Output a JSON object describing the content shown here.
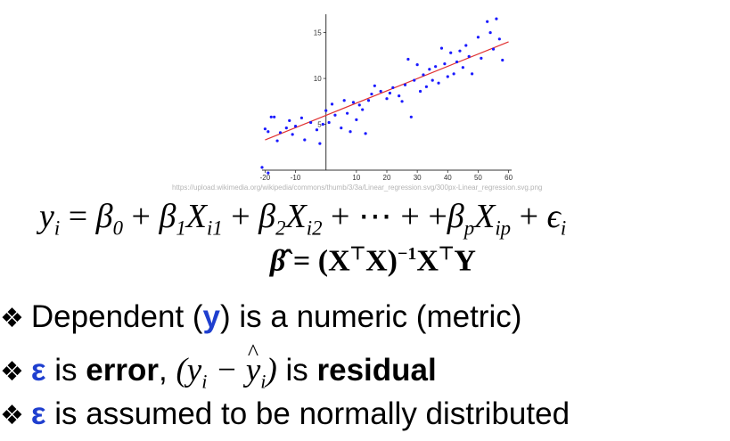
{
  "chart_data": {
    "type": "scatter",
    "title": "",
    "xlabel": "",
    "ylabel": "",
    "xlim": [
      -21,
      61
    ],
    "ylim": [
      0,
      17
    ],
    "x_ticks": [
      "-20",
      "-10",
      "10",
      "20",
      "30",
      "40",
      "50",
      "60"
    ],
    "y_ticks": [
      "5",
      "10",
      "15"
    ],
    "grid": false,
    "points": [
      [
        -20,
        4.5
      ],
      [
        -19,
        4.2
      ],
      [
        -18,
        5.8
      ],
      [
        -17,
        5.8
      ],
      [
        -16,
        3.2
      ],
      [
        -15,
        4.1
      ],
      [
        -13,
        4.6
      ],
      [
        -12,
        5.4
      ],
      [
        -11,
        3.9
      ],
      [
        -10,
        4.8
      ],
      [
        -8,
        5.7
      ],
      [
        -7,
        3.3
      ],
      [
        -5,
        5.2
      ],
      [
        -3,
        4.4
      ],
      [
        -2,
        2.9
      ],
      [
        -1,
        5.0
      ],
      [
        0,
        6.5
      ],
      [
        1,
        5.2
      ],
      [
        2,
        7.2
      ],
      [
        3,
        6.0
      ],
      [
        5,
        4.6
      ],
      [
        6,
        7.6
      ],
      [
        7,
        6.2
      ],
      [
        8,
        4.2
      ],
      [
        9,
        7.4
      ],
      [
        10,
        5.5
      ],
      [
        11,
        7.1
      ],
      [
        12,
        6.6
      ],
      [
        13,
        4.0
      ],
      [
        14,
        7.6
      ],
      [
        15,
        8.3
      ],
      [
        16,
        9.2
      ],
      [
        18,
        8.6
      ],
      [
        20,
        7.8
      ],
      [
        21,
        8.4
      ],
      [
        22,
        9.0
      ],
      [
        24,
        8.1
      ],
      [
        25,
        7.5
      ],
      [
        26,
        9.3
      ],
      [
        27,
        12.1
      ],
      [
        28,
        5.8
      ],
      [
        29,
        9.8
      ],
      [
        30,
        11.5
      ],
      [
        31,
        8.6
      ],
      [
        32,
        10.4
      ],
      [
        33,
        9.1
      ],
      [
        34,
        11.0
      ],
      [
        35,
        9.8
      ],
      [
        36,
        11.3
      ],
      [
        37,
        9.5
      ],
      [
        38,
        13.3
      ],
      [
        39,
        11.6
      ],
      [
        40,
        10.2
      ],
      [
        41,
        12.8
      ],
      [
        42,
        10.5
      ],
      [
        43,
        11.8
      ],
      [
        44,
        13.0
      ],
      [
        45,
        11.2
      ],
      [
        46,
        13.6
      ],
      [
        47,
        12.4
      ],
      [
        48,
        10.5
      ],
      [
        50,
        14.5
      ],
      [
        51,
        12.2
      ],
      [
        53,
        16.2
      ],
      [
        54,
        15.0
      ],
      [
        55,
        13.2
      ],
      [
        56,
        16.5
      ],
      [
        57,
        14.3
      ],
      [
        58,
        12.0
      ],
      [
        -19,
        -0.3
      ],
      [
        -21,
        0.3
      ]
    ],
    "fit_line": {
      "x": [
        -20,
        60
      ],
      "y": [
        3.3,
        14.0
      ],
      "color": "#e03030"
    },
    "point_color": "#1a1aff"
  },
  "source_url": "https://upload.wikimedia.org/wikipedia/commons/thumb/3/3a/Linear_regression.svg/300px-Linear_regression.svg.png",
  "equations": {
    "regression_model": "yi = β0 + β1Xi1 + β2Xi2 + ⋯ + +βpXip + ϵi",
    "ols_estimator": "β̂ = (XᵀX)⁻¹XᵀY"
  },
  "bullets": {
    "b1": {
      "prefix": "Dependent (",
      "highlight": "y",
      "suffix": ") is a numeric (metric)"
    },
    "b2": {
      "symbol": "ε",
      "t1": " is ",
      "bold1": "error",
      "t2": ", ",
      "math": "(yi − ŷi)",
      "t3": " is ",
      "bold2": "residual"
    },
    "b3": {
      "symbol": "ε",
      "text": " is assumed to be normally distributed"
    }
  },
  "bullet_marker": "❖",
  "colors": {
    "accent_blue": "#1f3fcf"
  }
}
